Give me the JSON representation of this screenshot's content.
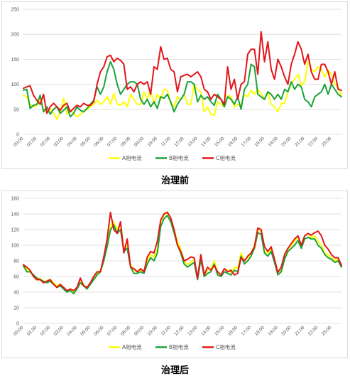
{
  "captions": {
    "top": "治理前",
    "bottom": "治理后"
  },
  "colors": {
    "A": "#ffff00",
    "B": "#1aa33a",
    "C": "#e3161a",
    "grid": "#d9d9d9",
    "tick": "#595959"
  },
  "chart_data": [
    {
      "type": "line",
      "title": "",
      "xlabel": "",
      "ylabel": "",
      "ylim": [
        0,
        250
      ],
      "yticks": [
        0,
        50,
        100,
        150,
        200,
        250
      ],
      "grid": true,
      "legend_position": "bottom",
      "x_tick_labels": [
        "00:00",
        "01:00",
        "02:00",
        "03:00",
        "04:00",
        "05:00",
        "06:00",
        "07:00",
        "08:00",
        "09:00",
        "10:00",
        "11:00",
        "12:00",
        "13:00",
        "14:00",
        "15:00",
        "16:00",
        "17:00",
        "18:00",
        "19:00",
        "20:00",
        "21:00",
        "22:00",
        "23:00"
      ],
      "points_per_label": 4,
      "series": [
        {
          "name": "A相电流",
          "key": "A",
          "values": [
            78,
            75,
            60,
            55,
            58,
            70,
            48,
            45,
            50,
            42,
            30,
            45,
            72,
            40,
            48,
            42,
            35,
            40,
            45,
            50,
            55,
            60,
            68,
            60,
            65,
            75,
            60,
            82,
            60,
            58,
            65,
            55,
            80,
            70,
            60,
            60,
            85,
            70,
            88,
            60,
            80,
            70,
            90,
            88,
            60,
            55,
            75,
            70,
            80,
            60,
            60,
            100,
            90,
            85,
            45,
            55,
            40,
            38,
            65,
            60,
            55,
            78,
            75,
            55,
            60,
            58,
            80,
            75,
            88,
            80,
            90,
            82,
            70,
            85,
            60,
            55,
            45,
            62,
            62,
            85,
            100,
            110,
            120,
            98,
            105,
            145,
            130,
            125,
            135,
            130,
            115,
            128,
            120,
            100,
            95,
            75
          ]
        },
        {
          "name": "B相电流",
          "key": "B",
          "values": [
            88,
            90,
            52,
            58,
            60,
            78,
            45,
            55,
            40,
            50,
            55,
            42,
            48,
            55,
            35,
            42,
            55,
            48,
            45,
            52,
            60,
            68,
            95,
            80,
            95,
            125,
            145,
            130,
            100,
            80,
            90,
            100,
            105,
            105,
            100,
            70,
            60,
            70,
            55,
            65,
            52,
            75,
            72,
            80,
            65,
            45,
            60,
            70,
            80,
            105,
            105,
            100,
            65,
            78,
            70,
            75,
            65,
            58,
            80,
            70,
            55,
            75,
            70,
            60,
            75,
            50,
            90,
            100,
            140,
            135,
            80,
            75,
            70,
            85,
            80,
            70,
            80,
            70,
            90,
            85,
            105,
            90,
            100,
            95,
            70,
            65,
            55,
            75,
            80,
            85,
            100,
            80,
            100,
            90,
            80,
            75
          ]
        },
        {
          "name": "C相电流",
          "key": "C",
          "values": [
            92,
            95,
            97,
            78,
            68,
            60,
            80,
            42,
            55,
            62,
            55,
            48,
            58,
            62,
            45,
            52,
            58,
            55,
            62,
            58,
            58,
            65,
            100,
            125,
            135,
            155,
            158,
            145,
            152,
            148,
            140,
            90,
            95,
            85,
            100,
            105,
            100,
            105,
            80,
            135,
            130,
            175,
            150,
            152,
            130,
            125,
            85,
            115,
            118,
            120,
            115,
            120,
            125,
            115,
            90,
            85,
            70,
            80,
            75,
            70,
            60,
            135,
            90,
            110,
            70,
            100,
            105,
            160,
            170,
            170,
            120,
            205,
            145,
            185,
            130,
            110,
            150,
            135,
            115,
            100,
            140,
            160,
            185,
            170,
            140,
            160,
            125,
            110,
            110,
            140,
            140,
            125,
            100,
            125,
            90,
            88
          ]
        }
      ]
    },
    {
      "type": "line",
      "title": "",
      "xlabel": "",
      "ylabel": "",
      "ylim": [
        0,
        160
      ],
      "yticks": [
        0,
        20,
        40,
        60,
        80,
        100,
        120,
        140,
        160
      ],
      "grid": true,
      "legend_position": "bottom",
      "x_tick_labels": [
        "00:00",
        "01:00",
        "02:00",
        "03:00",
        "04:00",
        "05:00",
        "06:00",
        "07:00",
        "08:00",
        "09:00",
        "10:00",
        "11:00",
        "12:00",
        "13:00",
        "14:00",
        "15:00",
        "16:00",
        "17:00",
        "18:00",
        "19:00",
        "20:00",
        "21:00",
        "22:00",
        "23:00"
      ],
      "points_per_label": 4,
      "series": [
        {
          "name": "A相电流",
          "key": "A",
          "values": [
            72,
            70,
            66,
            60,
            55,
            58,
            52,
            55,
            56,
            52,
            48,
            50,
            46,
            40,
            44,
            40,
            45,
            55,
            50,
            45,
            52,
            58,
            64,
            68,
            82,
            100,
            125,
            130,
            120,
            128,
            95,
            100,
            75,
            68,
            66,
            68,
            68,
            80,
            88,
            85,
            95,
            130,
            138,
            143,
            135,
            120,
            105,
            95,
            80,
            75,
            78,
            82,
            58,
            85,
            62,
            68,
            70,
            80,
            65,
            62,
            70,
            68,
            65,
            72,
            70,
            90,
            80,
            84,
            90,
            100,
            120,
            118,
            92,
            90,
            95,
            80,
            66,
            68,
            85,
            95,
            100,
            105,
            110,
            100,
            112,
            115,
            110,
            112,
            105,
            100,
            90,
            88,
            84,
            80,
            82,
            75
          ]
        },
        {
          "name": "B相电流",
          "key": "B",
          "values": [
            74,
            66,
            66,
            62,
            58,
            56,
            54,
            52,
            54,
            50,
            46,
            48,
            44,
            40,
            42,
            38,
            44,
            52,
            48,
            44,
            50,
            56,
            62,
            66,
            80,
            98,
            120,
            126,
            115,
            120,
            92,
            96,
            72,
            64,
            64,
            66,
            64,
            76,
            84,
            80,
            90,
            124,
            134,
            138,
            130,
            116,
            100,
            90,
            76,
            72,
            75,
            78,
            56,
            82,
            60,
            64,
            66,
            76,
            62,
            60,
            66,
            64,
            62,
            68,
            66,
            86,
            76,
            80,
            86,
            96,
            116,
            114,
            90,
            86,
            92,
            78,
            62,
            66,
            82,
            92,
            96,
            100,
            106,
            96,
            108,
            110,
            108,
            108,
            100,
            96,
            88,
            84,
            82,
            78,
            80,
            72
          ]
        },
        {
          "name": "C相电流",
          "key": "C",
          "values": [
            75,
            72,
            68,
            60,
            56,
            56,
            52,
            54,
            56,
            50,
            46,
            50,
            46,
            42,
            44,
            42,
            46,
            58,
            48,
            46,
            52,
            60,
            66,
            66,
            85,
            108,
            142,
            120,
            115,
            130,
            90,
            108,
            72,
            70,
            66,
            70,
            66,
            85,
            92,
            90,
            105,
            132,
            140,
            142,
            135,
            120,
            100,
            92,
            80,
            82,
            85,
            84,
            58,
            88,
            62,
            72,
            68,
            74,
            66,
            62,
            70,
            66,
            68,
            62,
            64,
            84,
            80,
            86,
            90,
            98,
            122,
            120,
            98,
            92,
            98,
            82,
            65,
            72,
            88,
            96,
            102,
            108,
            112,
            100,
            112,
            115,
            113,
            116,
            118,
            112,
            100,
            95,
            88,
            84,
            84,
            74
          ]
        }
      ]
    }
  ]
}
